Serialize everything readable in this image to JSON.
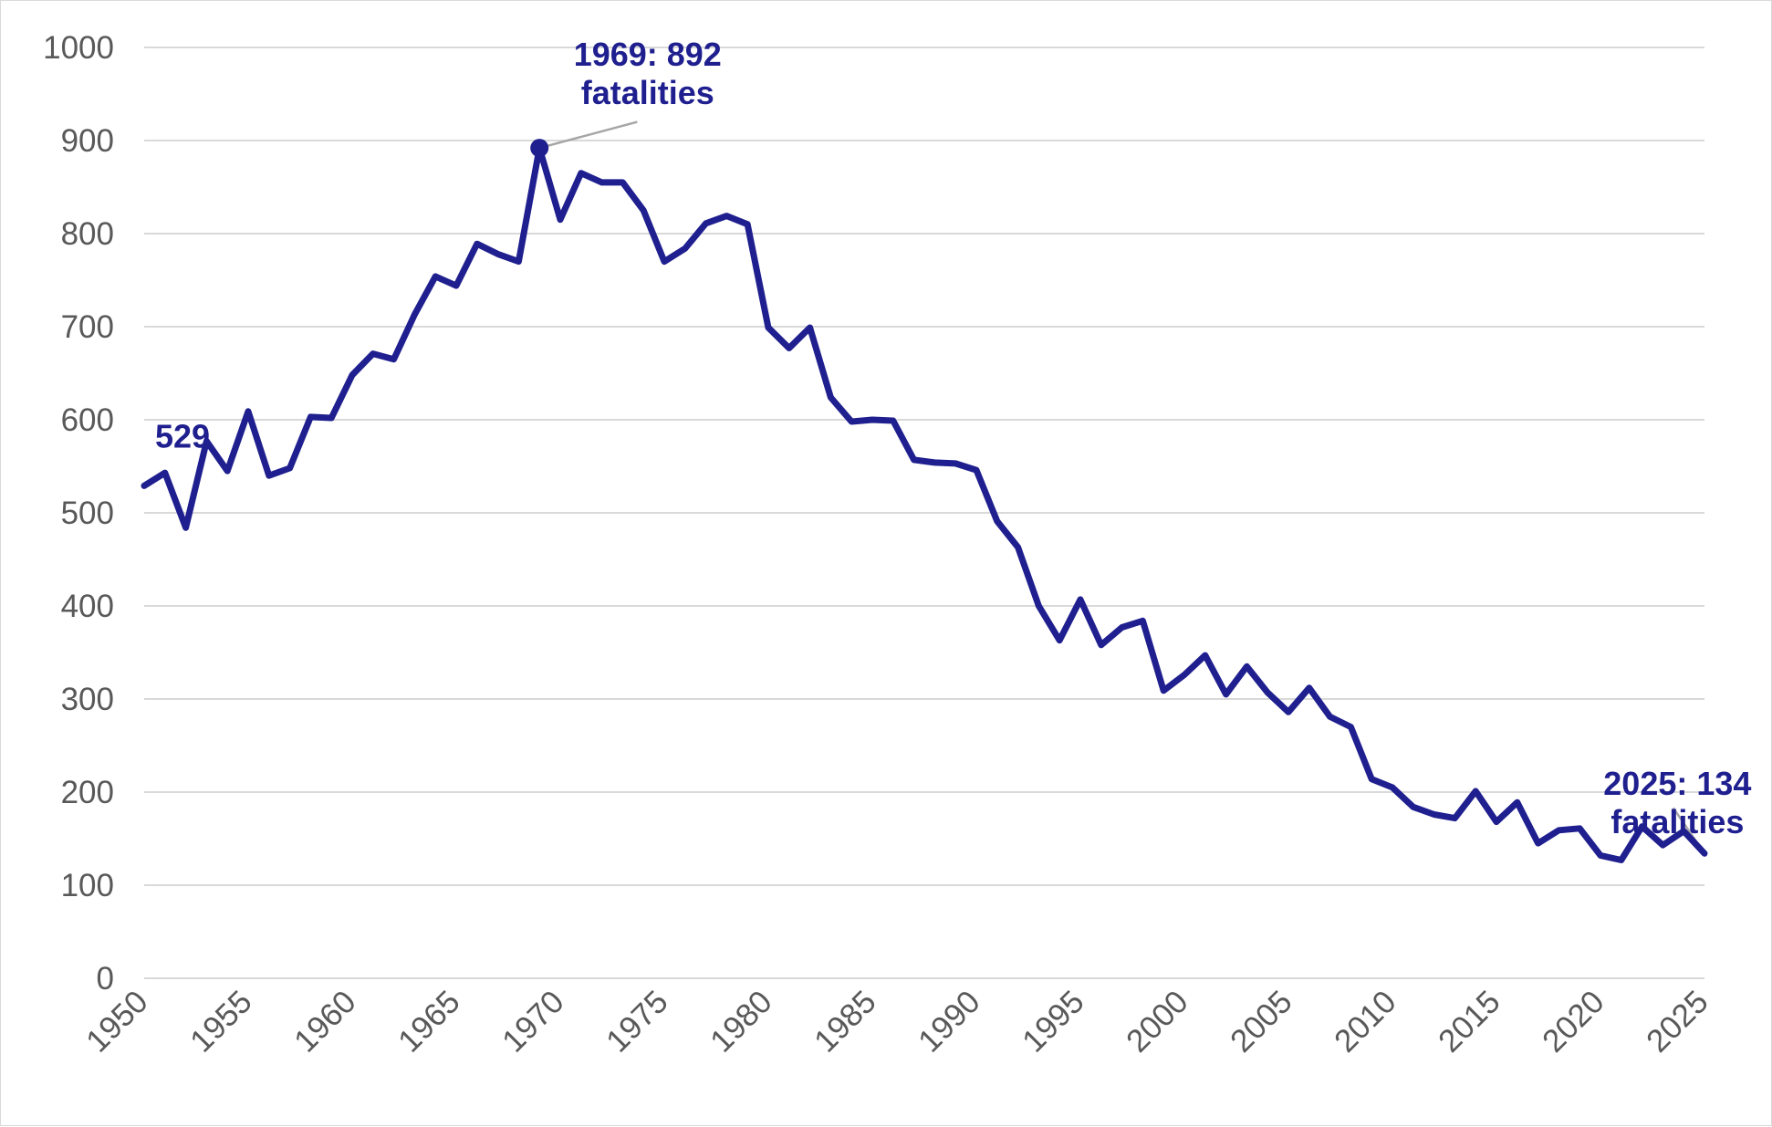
{
  "chart_data": {
    "type": "line",
    "title": "",
    "xlabel": "",
    "ylabel": "",
    "xlim": [
      1950,
      2025
    ],
    "ylim": [
      0,
      1000
    ],
    "y_ticks": [
      "0",
      "100",
      "200",
      "300",
      "400",
      "500",
      "600",
      "700",
      "800",
      "900",
      "1000"
    ],
    "x_ticks": [
      "1950",
      "1955",
      "1960",
      "1965",
      "1970",
      "1975",
      "1980",
      "1985",
      "1990",
      "1995",
      "2000",
      "2005",
      "2010",
      "2015",
      "2020",
      "2025"
    ],
    "grid": true,
    "legend": "none",
    "colors": {
      "series": "#1f1f8f",
      "grid": "#d9d9d9",
      "tick_text": "#595959",
      "leader": "#a6a6a6"
    },
    "x": [
      1950,
      1951,
      1952,
      1953,
      1954,
      1955,
      1956,
      1957,
      1958,
      1959,
      1960,
      1961,
      1962,
      1963,
      1964,
      1965,
      1966,
      1967,
      1968,
      1969,
      1970,
      1971,
      1972,
      1973,
      1974,
      1975,
      1976,
      1977,
      1978,
      1979,
      1980,
      1981,
      1982,
      1983,
      1984,
      1985,
      1986,
      1987,
      1988,
      1989,
      1990,
      1991,
      1992,
      1993,
      1994,
      1995,
      1996,
      1997,
      1998,
      1999,
      2000,
      2001,
      2002,
      2003,
      2004,
      2005,
      2006,
      2007,
      2008,
      2009,
      2010,
      2011,
      2012,
      2013,
      2014,
      2015,
      2016,
      2017,
      2018,
      2019,
      2020,
      2021,
      2022,
      2023,
      2024,
      2025
    ],
    "series": [
      {
        "values": [
          529,
          543,
          484,
          577,
          545,
          609,
          540,
          548,
          603,
          602,
          648,
          671,
          665,
          713,
          754,
          744,
          789,
          778,
          770,
          892,
          815,
          865,
          855,
          855,
          825,
          770,
          784,
          811,
          819,
          810,
          699,
          677,
          699,
          624,
          598,
          600,
          599,
          557,
          554,
          553,
          546,
          491,
          463,
          400,
          363,
          407,
          358,
          377,
          384,
          309,
          326,
          347,
          305,
          335,
          307,
          286,
          312,
          281,
          270,
          214,
          205,
          184,
          176,
          172,
          201,
          168,
          189,
          145,
          159,
          161,
          132,
          127,
          163,
          143,
          158,
          134
        ]
      }
    ],
    "annotations": [
      {
        "key": "start",
        "x": 1950,
        "y": 529,
        "label_lines": [
          "529"
        ]
      },
      {
        "key": "peak",
        "x": 1969,
        "y": 892,
        "label_lines": [
          "1969: 892",
          "fatalities"
        ]
      },
      {
        "key": "end",
        "x": 2025,
        "y": 134,
        "label_lines": [
          "2025: 134",
          "fatalities"
        ]
      }
    ]
  }
}
